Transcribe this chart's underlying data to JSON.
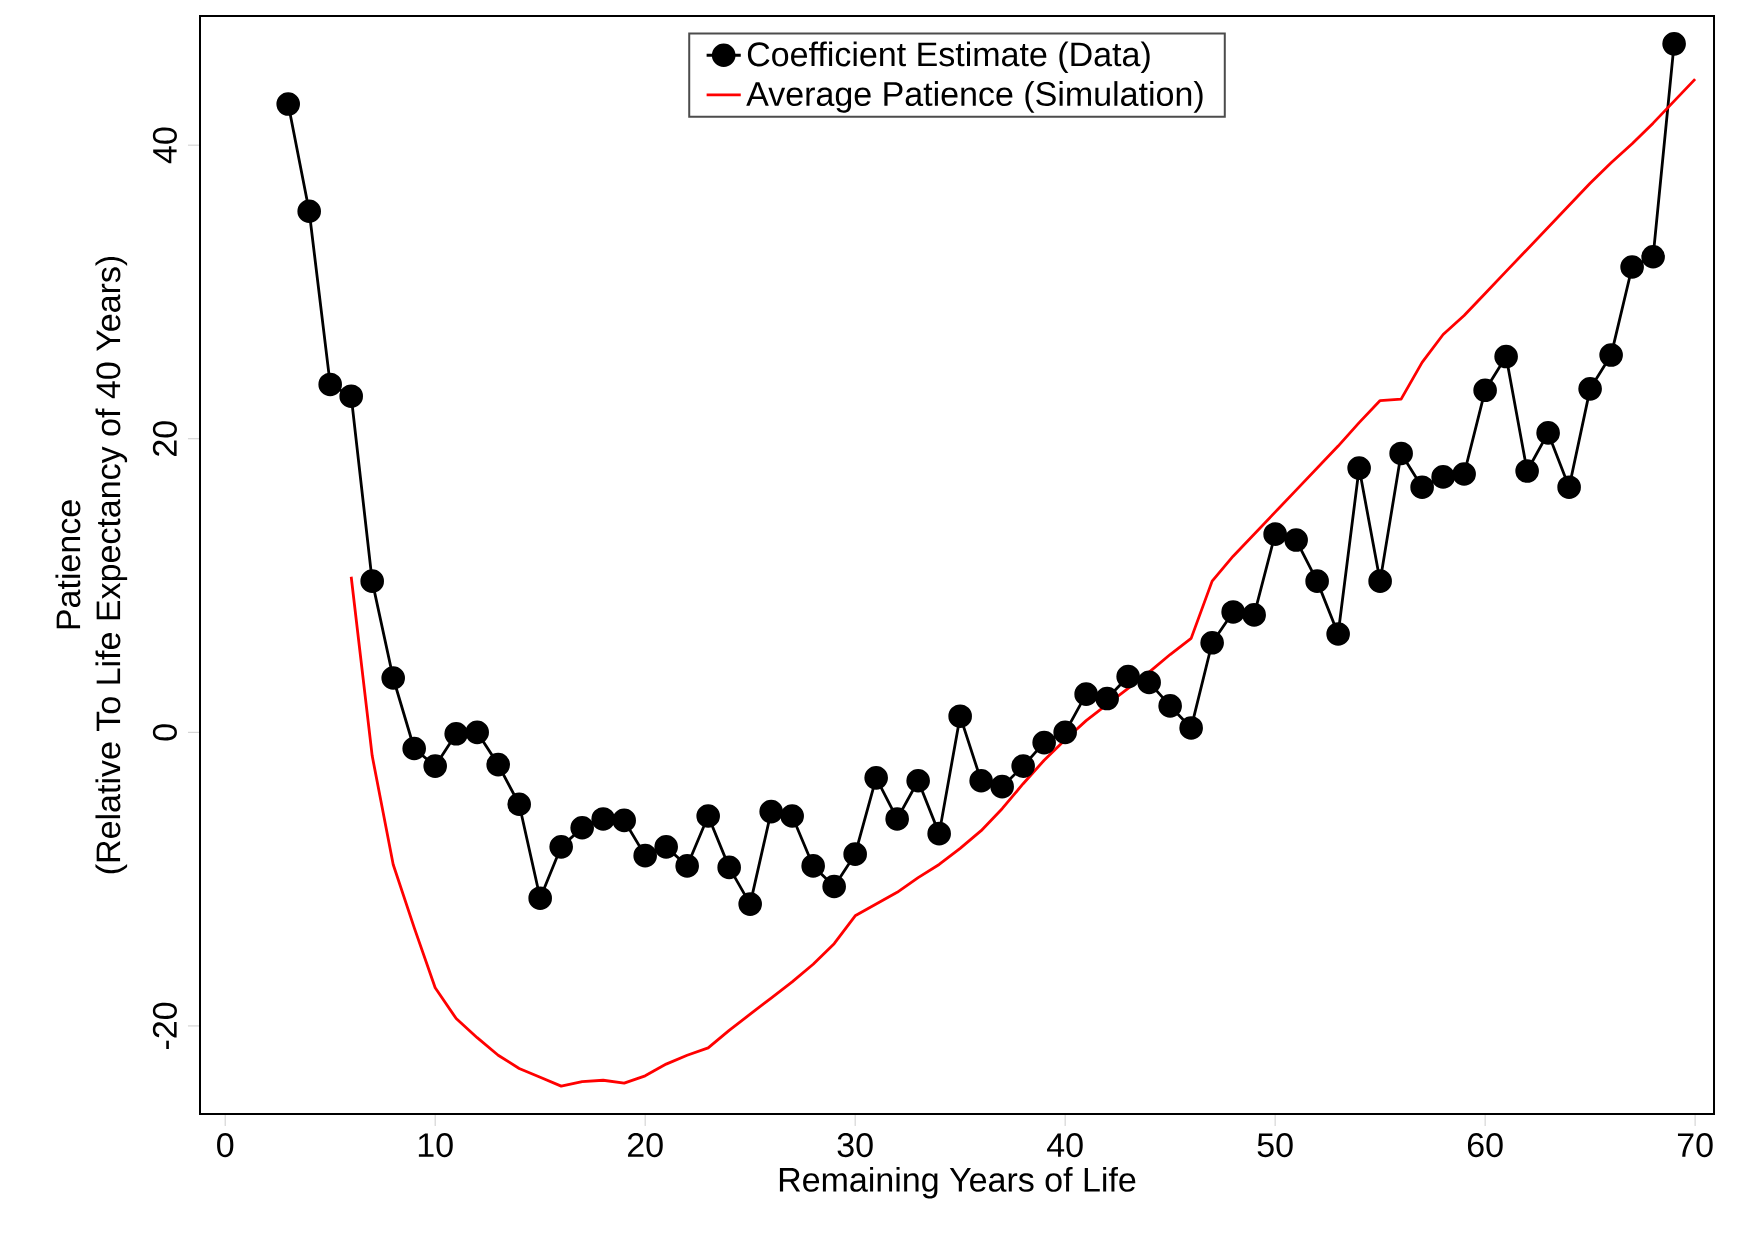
{
  "chart_data": {
    "type": "line",
    "xlabel": "Remaining Years of Life",
    "ylabel": "Patience\n(Relative To Life Expectancy of 40 Years)",
    "xlim": [
      -1.2,
      70.9
    ],
    "ylim": [
      -26,
      48.8
    ],
    "xticks": [
      0,
      10,
      20,
      30,
      40,
      50,
      60,
      70
    ],
    "yticks": [
      -20,
      0,
      20,
      40
    ],
    "legend": "top",
    "grid": false,
    "series": [
      {
        "name": "Coefficient Estimate (Data)",
        "color": "#000000",
        "marker": "circle",
        "x": [
          3,
          4,
          5,
          6,
          7,
          8,
          9,
          10,
          11,
          12,
          13,
          14,
          15,
          16,
          17,
          18,
          19,
          20,
          21,
          22,
          23,
          24,
          25,
          26,
          27,
          28,
          29,
          30,
          31,
          32,
          33,
          34,
          35,
          36,
          37,
          38,
          39,
          40,
          41,
          42,
          43,
          44,
          45,
          46,
          47,
          48,
          49,
          50,
          51,
          52,
          53,
          54,
          55,
          56,
          57,
          58,
          59,
          60,
          61,
          62,
          63,
          64,
          65,
          66,
          67,
          68,
          69
        ],
        "values": [
          42.8,
          35.5,
          23.7,
          22.9,
          10.3,
          3.7,
          -1.1,
          -2.3,
          -0.1,
          0,
          -2.2,
          -4.9,
          -11.3,
          -7.8,
          -6.5,
          -5.9,
          -6.0,
          -8.4,
          -7.8,
          -9.1,
          -5.7,
          -9.2,
          -11.7,
          -5.4,
          -5.7,
          -9.1,
          -10.5,
          -8.3,
          -3.1,
          -5.9,
          -3.3,
          -6.9,
          1.1,
          -3.3,
          -3.7,
          -2.3,
          -0.7,
          0,
          2.6,
          2.3,
          3.8,
          3.4,
          1.8,
          0.3,
          6.1,
          8.2,
          8.0,
          13.5,
          13.1,
          10.3,
          6.7,
          18.0,
          10.3,
          19.0,
          16.7,
          17.4,
          17.6,
          23.3,
          25.6,
          17.8,
          20.4,
          16.7,
          23.4,
          25.7,
          31.7,
          32.4,
          46.9
        ]
      },
      {
        "name": "Average Patience (Simulation)",
        "color": "#ff0000",
        "marker": "none",
        "x": [
          6,
          7,
          8,
          9,
          10,
          11,
          12,
          13,
          14,
          15,
          16,
          17,
          18,
          19,
          20,
          21,
          22,
          23,
          24,
          25,
          26,
          27,
          28,
          29,
          30,
          31,
          32,
          33,
          34,
          35,
          36,
          37,
          38,
          39,
          40,
          41,
          42,
          43,
          44,
          45,
          46,
          47,
          48,
          49,
          50,
          51,
          52,
          53,
          54,
          55,
          56,
          57,
          58,
          59,
          60,
          61,
          62,
          63,
          64,
          65,
          66,
          67,
          68,
          69,
          70
        ],
        "values": [
          10.6,
          -1.6,
          -9.0,
          -13.3,
          -17.4,
          -19.5,
          -20.8,
          -22.0,
          -22.9,
          -23.5,
          -24.1,
          -23.8,
          -23.7,
          -23.9,
          -23.4,
          -22.6,
          -22.0,
          -21.5,
          -20.3,
          -19.2,
          -18.1,
          -17.0,
          -15.8,
          -14.4,
          -12.5,
          -11.7,
          -10.9,
          -9.9,
          -9.0,
          -7.9,
          -6.7,
          -5.2,
          -3.5,
          -1.9,
          -0.5,
          0.8,
          1.9,
          3.0,
          4.1,
          5.3,
          6.4,
          10.3,
          12.0,
          13.5,
          15.0,
          16.5,
          18.0,
          19.5,
          21.1,
          22.6,
          22.7,
          25.2,
          27.1,
          28.4,
          29.9,
          31.4,
          32.9,
          34.4,
          35.9,
          37.4,
          38.8,
          40.1,
          41.5,
          43.0,
          44.5
        ]
      }
    ]
  }
}
